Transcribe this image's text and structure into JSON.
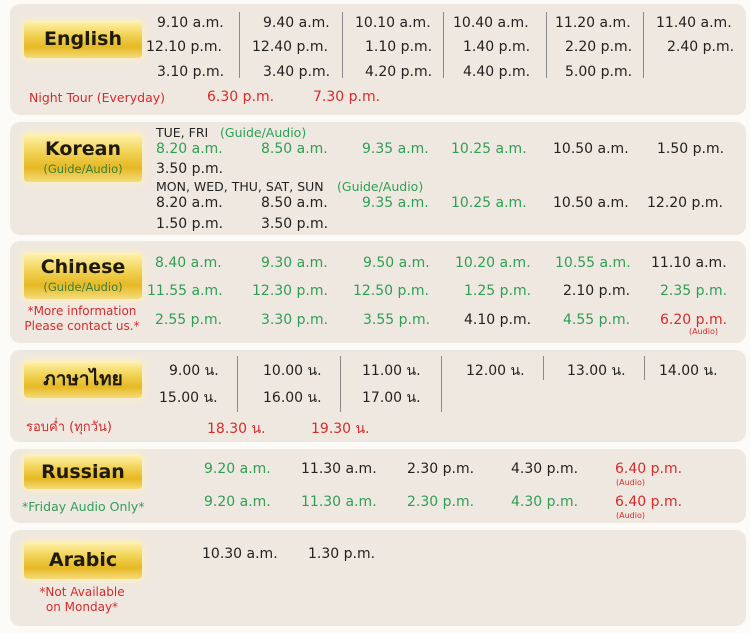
{
  "english": {
    "name": "English",
    "row1": [
      "9.10 a.m.",
      "9.40 a.m.",
      "10.10 a.m.",
      "10.40 a.m.",
      "11.20 a.m.",
      "11.40 a.m."
    ],
    "row2": [
      "12.10 p.m.",
      "12.40 p.m.",
      "1.10 p.m.",
      "1.40 p.m.",
      "2.20 p.m.",
      "2.40 p.m."
    ],
    "row3": [
      "3.10 p.m.",
      "3.40 p.m.",
      "4.20 p.m.",
      "4.40 p.m.",
      "5.00 p.m."
    ],
    "night_label": "Night Tour (Everyday)",
    "night_times": [
      "6.30 p.m.",
      "7.30 p.m."
    ]
  },
  "korean": {
    "name": "Korean",
    "sub": "(Guide/Audio)",
    "days1": "TUE, FRI",
    "days1_note": "(Guide/Audio)",
    "row1": [
      "8.20 a.m.",
      "8.50 a.m.",
      "9.35 a.m.",
      "10.25 a.m.",
      "10.50 a.m.",
      "1.50 p.m."
    ],
    "row2": [
      "3.50 p.m."
    ],
    "days2": "MON, WED, THU, SAT, SUN",
    "days2_note": "(Guide/Audio)",
    "row3": [
      "8.20 a.m.",
      "8.50 a.m.",
      "9.35 a.m.",
      "10.25 a.m.",
      "10.50 a.m.",
      "12.20 p.m."
    ],
    "row4": [
      "1.50 p.m.",
      "3.50 p.m."
    ]
  },
  "chinese": {
    "name": "Chinese",
    "sub": "(Guide/Audio)",
    "note1": "*More information",
    "note2": "Please contact us.*",
    "row1": [
      "8.40 a.m.",
      "9.30 a.m.",
      "9.50 a.m.",
      "10.20 a.m.",
      "10.55 a.m.",
      "11.10 a.m."
    ],
    "row2": [
      "11.55 a.m.",
      "12.30 p.m.",
      "12.50 p.m.",
      "1.25 p.m.",
      "2.10 p.m.",
      "2.35 p.m."
    ],
    "row3": [
      "2.55 p.m.",
      "3.30 p.m.",
      "3.55 p.m.",
      "4.10 p.m.",
      "4.55 p.m.",
      "6.20 p.m."
    ],
    "audio_tag": "(Audio)"
  },
  "thai": {
    "name": "ภาษาไทย",
    "row1": [
      "9.00 น.",
      "10.00 น.",
      "11.00 น.",
      "12.00 น.",
      "13.00 น.",
      "14.00 น."
    ],
    "row2": [
      "15.00 น.",
      "16.00 น.",
      "17.00 น."
    ],
    "night_label": "รอบค่ำ (ทุกวัน)",
    "night_times": [
      "18.30 น.",
      "19.30 น."
    ]
  },
  "russian": {
    "name": "Russian",
    "note": "*Friday Audio Only*",
    "row1": [
      "9.20 a.m.",
      "11.30 a.m.",
      "2.30 p.m.",
      "4.30 p.m.",
      "6.40 p.m."
    ],
    "row2": [
      "9.20 a.m.",
      "11.30 a.m.",
      "2.30 p.m.",
      "4.30 p.m.",
      "6.40 p.m."
    ],
    "audio_tag": "(Audio)"
  },
  "arabic": {
    "name": "Arabic",
    "note1": "*Not Available",
    "note2": "on Monday*",
    "row1": [
      "10.30 a.m.",
      "1.30 p.m."
    ]
  },
  "colors": {
    "guide": "#2f9f55",
    "highlight": "#d62b2b",
    "badge_gold": "#e6b824",
    "card": "#efe8e0"
  }
}
